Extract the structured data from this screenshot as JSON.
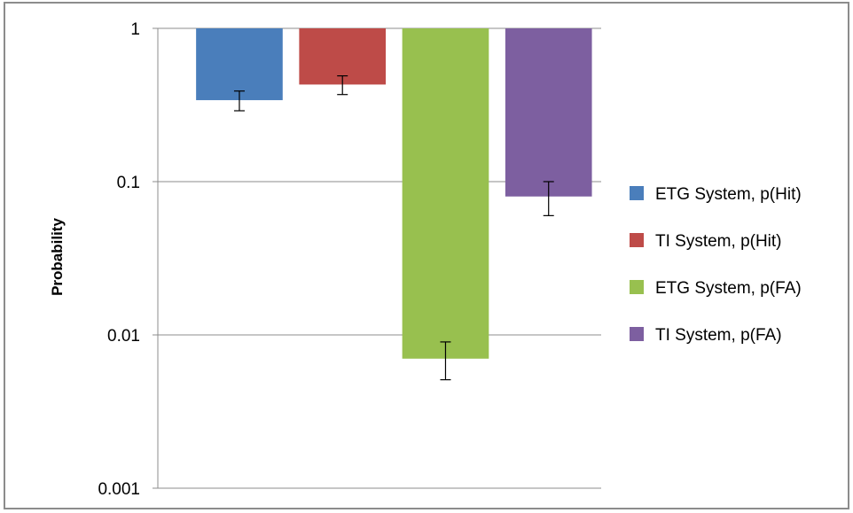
{
  "chart_data": {
    "type": "bar",
    "title": "",
    "xlabel": "",
    "ylabel": "Probability",
    "yscale": "log",
    "ylim": [
      0.001,
      1
    ],
    "yticks": [
      {
        "value": 1,
        "label": "1"
      },
      {
        "value": 0.1,
        "label": "0.1"
      },
      {
        "value": 0.01,
        "label": "0.01"
      },
      {
        "value": 0.001,
        "label": "0.001"
      }
    ],
    "grid": true,
    "bars_hang_from": 1,
    "legend_position": "right",
    "series": [
      {
        "name": "ETG System, p(Hit)",
        "value": 0.34,
        "error_low": 0.29,
        "error_high": 0.39,
        "color": "#4a7ebb"
      },
      {
        "name": "TI System, p(Hit)",
        "value": 0.43,
        "error_low": 0.37,
        "error_high": 0.49,
        "color": "#be4b48"
      },
      {
        "name": "ETG System, p(FA)",
        "value": 0.007,
        "error_low": 0.0051,
        "error_high": 0.009,
        "color": "#98c04f"
      },
      {
        "name": "TI System, p(FA)",
        "value": 0.08,
        "error_low": 0.06,
        "error_high": 0.1,
        "color": "#7d5fa0"
      }
    ]
  }
}
